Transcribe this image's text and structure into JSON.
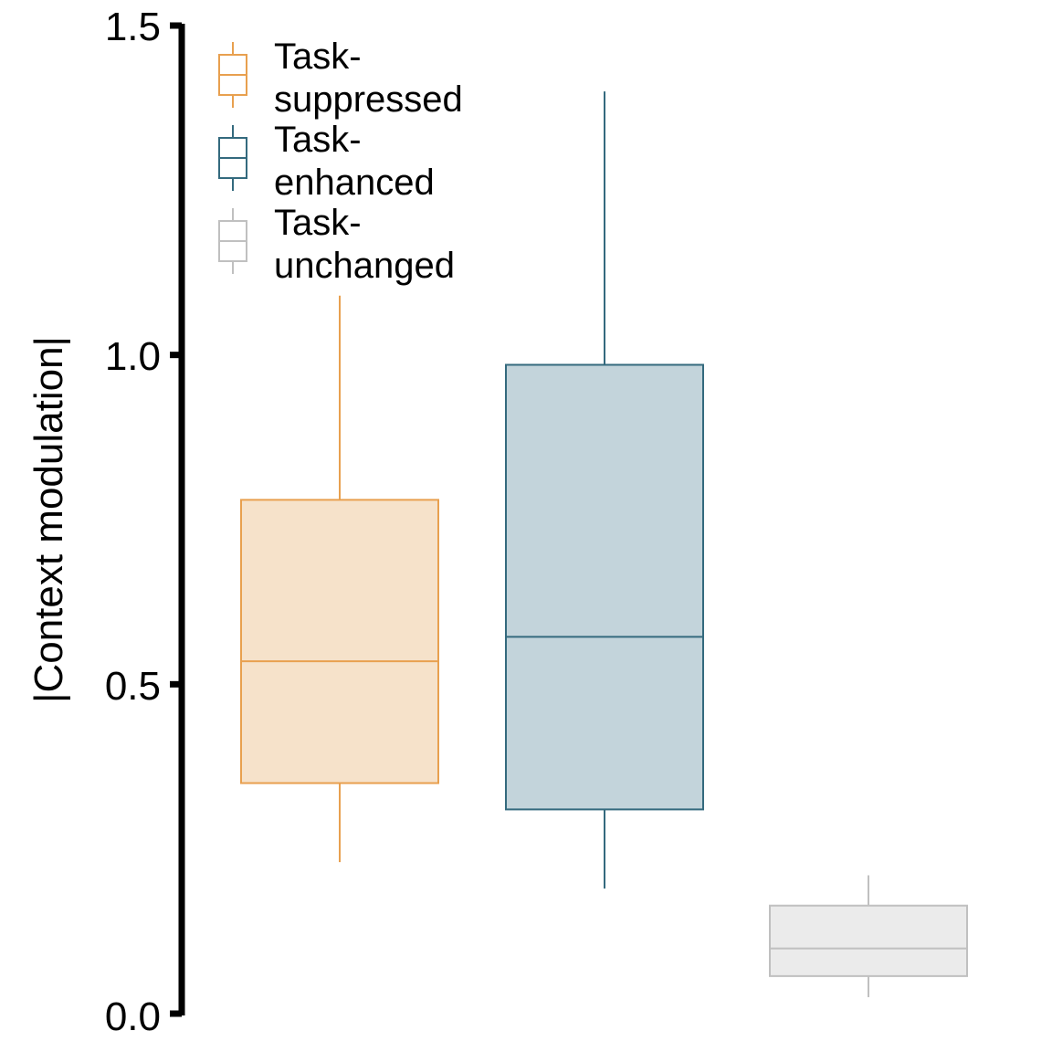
{
  "chart_data": {
    "type": "boxplot",
    "title": "",
    "xlabel": "",
    "ylabel": "|Context modulation|",
    "ylim": [
      0,
      1.5
    ],
    "yticks": [
      "0.0",
      "0.5",
      "1.0",
      "1.5"
    ],
    "grid": false,
    "legend_position": "top-left",
    "series": [
      {
        "name": "Task-suppressed",
        "legend_lines": [
          "Task-",
          "suppressed"
        ],
        "whisker_low": 0.23,
        "q1": 0.35,
        "median": 0.535,
        "q3": 0.78,
        "whisker_high": 1.09,
        "stroke": "#E8A04F",
        "fill": "#F6E2CA"
      },
      {
        "name": "Task-enhanced",
        "legend_lines": [
          "Task-",
          "enhanced"
        ],
        "whisker_low": 0.19,
        "q1": 0.31,
        "median": 0.572,
        "q3": 0.985,
        "whisker_high": 1.4,
        "stroke": "#346A7E",
        "fill": "#C3D4DB"
      },
      {
        "name": "Task-unchanged",
        "legend_lines": [
          "Task-",
          "unchanged"
        ],
        "whisker_low": 0.025,
        "q1": 0.057,
        "median": 0.099,
        "q3": 0.164,
        "whisker_high": 0.21,
        "stroke": "#C0C0C0",
        "fill": "#EBEBEB"
      }
    ]
  }
}
